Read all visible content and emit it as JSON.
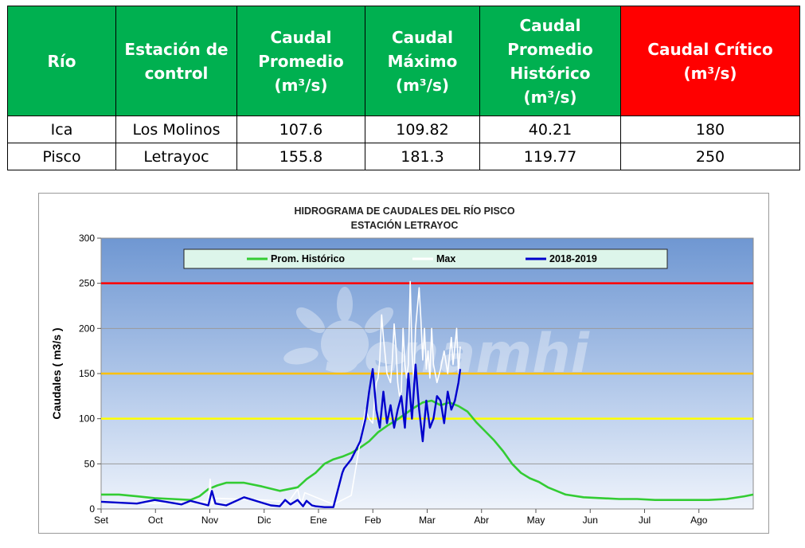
{
  "table": {
    "headers": [
      [
        "Río"
      ],
      [
        "Estación de",
        "control"
      ],
      [
        "Caudal",
        "Promedio",
        "(m³/s)"
      ],
      [
        "Caudal",
        "Máximo",
        "(m³/s)"
      ],
      [
        "Caudal",
        "Promedio",
        "Histórico",
        "(m³/s)"
      ],
      [
        "Caudal Crítico",
        "(m³/s)"
      ]
    ],
    "header_colors": [
      "#00b050",
      "#00b050",
      "#00b050",
      "#00b050",
      "#00b050",
      "#ff0000"
    ],
    "rows": [
      [
        "Ica",
        "Los Molinos",
        "107.6",
        "109.82",
        "40.21",
        "180"
      ],
      [
        "Pisco",
        "Letrayoc",
        "155.8",
        "181.3",
        "119.77",
        "250"
      ]
    ]
  },
  "chart_data": {
    "type": "line",
    "title": "HIDROGRAMA DE CAUDALES DEL RÍO PISCO",
    "subtitle": "ESTACIÓN LETRAYOC",
    "ylabel": "Caudales ( m3/s )",
    "xlabel": "",
    "x_ticks": [
      "Set",
      "Oct",
      "Nov",
      "Dic",
      "Ene",
      "Feb",
      "Mar",
      "Abr",
      "May",
      "Jun",
      "Jul",
      "Ago"
    ],
    "x_unit": "days since start of hydrological year (1 Set)",
    "x_range": [
      0,
      365
    ],
    "ylim": [
      0,
      300
    ],
    "y_ticks": [
      0,
      50,
      100,
      150,
      200,
      250,
      300
    ],
    "grid": true,
    "legend_position": "top",
    "watermark": "Senamhi",
    "threshold_lines": [
      {
        "value": 250,
        "color": "#ff0000"
      },
      {
        "value": 150,
        "color": "#ffc000"
      },
      {
        "value": 100,
        "color": "#ffff00"
      }
    ],
    "series": [
      {
        "name": "Prom. Histórico",
        "color": "#33cc33",
        "x": [
          0,
          10,
          20,
          30,
          40,
          50,
          55,
          60,
          65,
          70,
          80,
          90,
          100,
          110,
          115,
          120,
          125,
          130,
          135,
          140,
          145,
          150,
          155,
          160,
          165,
          170,
          175,
          180,
          185,
          190,
          195,
          200,
          205,
          210,
          215,
          220,
          225,
          230,
          235,
          240,
          245,
          250,
          260,
          270,
          280,
          290,
          300,
          310,
          320,
          330,
          340,
          350,
          360,
          365
        ],
        "y": [
          16,
          16,
          14,
          12,
          11,
          10,
          14,
          22,
          26,
          29,
          29,
          25,
          20,
          24,
          33,
          40,
          50,
          55,
          58,
          62,
          68,
          75,
          85,
          92,
          98,
          105,
          112,
          118,
          120,
          115,
          118,
          114,
          108,
          96,
          86,
          76,
          64,
          50,
          40,
          34,
          30,
          24,
          16,
          13,
          12,
          11,
          11,
          10,
          10,
          10,
          10,
          11,
          14,
          16
        ]
      },
      {
        "name": "Max",
        "color": "#ffffff",
        "x": [
          0,
          30,
          60,
          61,
          62,
          63,
          90,
          105,
          110,
          112,
          114,
          130,
          135,
          140,
          148,
          150,
          152,
          153,
          154,
          155,
          156,
          157,
          158,
          160,
          162,
          163,
          164,
          165,
          166,
          167,
          168,
          169,
          170,
          171,
          172,
          173,
          174,
          175,
          176,
          178,
          179,
          180,
          181,
          182,
          183,
          184,
          185,
          186,
          188,
          190,
          192,
          194,
          196,
          197,
          198,
          199,
          200,
          201
        ],
        "y": [
          8,
          6,
          8,
          33,
          5,
          12,
          10,
          8,
          22,
          5,
          18,
          5,
          10,
          15,
          110,
          100,
          95,
          120,
          140,
          145,
          165,
          215,
          190,
          150,
          140,
          165,
          205,
          180,
          140,
          125,
          130,
          200,
          160,
          145,
          160,
          252,
          175,
          140,
          200,
          245,
          210,
          165,
          200,
          155,
          175,
          145,
          200,
          160,
          140,
          155,
          175,
          150,
          190,
          160,
          180,
          200,
          150,
          180
        ]
      },
      {
        "name": "2018-2019",
        "color": "#0000cc",
        "x": [
          0,
          20,
          30,
          45,
          50,
          60,
          62,
          64,
          70,
          80,
          85,
          90,
          95,
          100,
          103,
          106,
          110,
          113,
          115,
          118,
          120,
          125,
          130,
          135,
          136,
          140,
          145,
          148,
          150,
          152,
          154,
          156,
          158,
          160,
          162,
          164,
          166,
          168,
          170,
          172,
          174,
          176,
          178,
          180,
          182,
          184,
          186,
          188,
          190,
          192,
          194,
          196,
          198,
          200,
          201
        ],
        "y": [
          8,
          6,
          10,
          5,
          9,
          4,
          20,
          6,
          4,
          13,
          10,
          7,
          4,
          3,
          10,
          5,
          10,
          3,
          9,
          4,
          3,
          2,
          2,
          40,
          45,
          55,
          75,
          100,
          130,
          155,
          110,
          90,
          130,
          95,
          115,
          90,
          110,
          125,
          90,
          150,
          100,
          160,
          110,
          75,
          120,
          90,
          100,
          125,
          120,
          95,
          130,
          110,
          120,
          140,
          155
        ]
      }
    ]
  }
}
